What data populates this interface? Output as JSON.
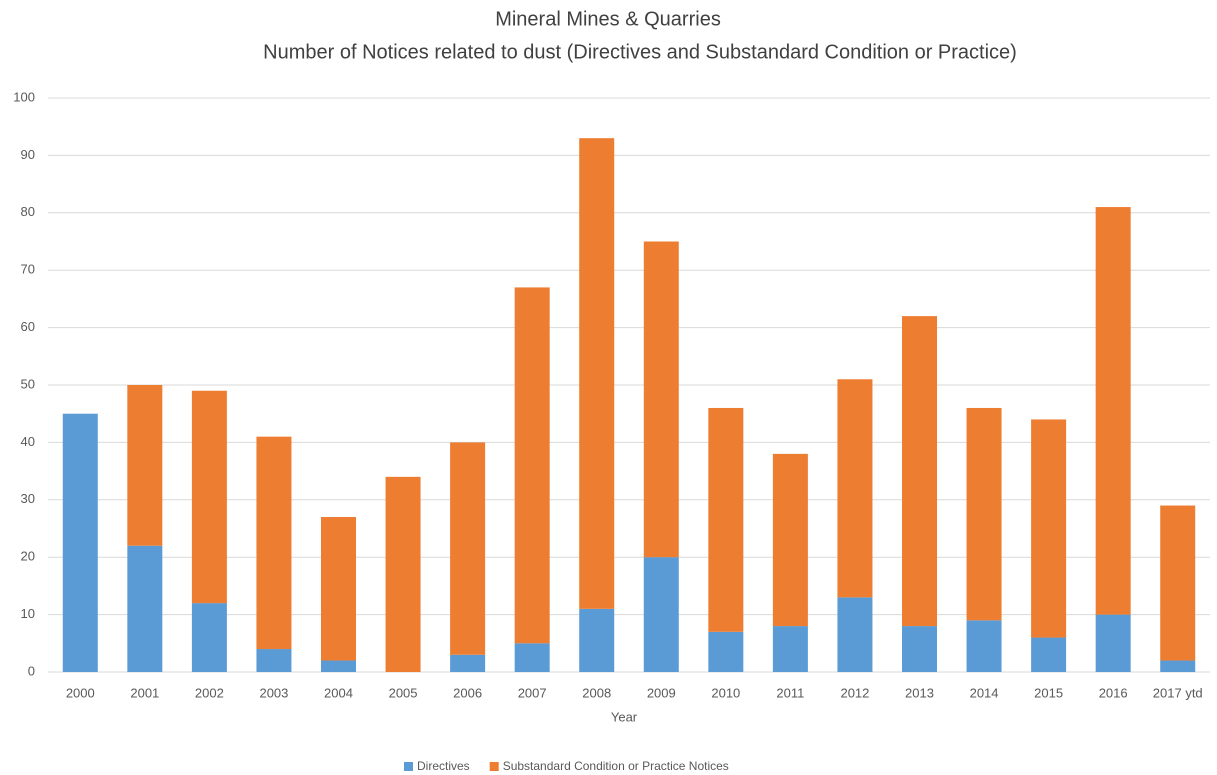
{
  "chart_data": {
    "type": "stacked_bar",
    "title": "Mineral Mines & Quarries",
    "subtitle": "Number of Notices related to dust (Directives and Substandard Condition or Practice)",
    "x_label": "Year",
    "categories": [
      "2000",
      "2001",
      "2002",
      "2003",
      "2004",
      "2005",
      "2006",
      "2007",
      "2008",
      "2009",
      "2010",
      "2011",
      "2012",
      "2013",
      "2014",
      "2015",
      "2016",
      "2017 ytd"
    ],
    "series": [
      {
        "name": "Directives",
        "color": "#5b9bd5",
        "values": [
          45,
          22,
          12,
          4,
          2,
          0,
          3,
          5,
          11,
          20,
          7,
          8,
          13,
          8,
          9,
          6,
          10,
          2
        ]
      },
      {
        "name": "Substandard Condition or Practice Notices",
        "color": "#ed7d31",
        "values": [
          0,
          28,
          37,
          37,
          25,
          34,
          37,
          62,
          82,
          55,
          39,
          30,
          38,
          54,
          37,
          38,
          71,
          27
        ]
      }
    ],
    "ylim": [
      0,
      100
    ],
    "yticks": [
      0,
      10,
      20,
      30,
      40,
      50,
      60,
      70,
      80,
      90,
      100
    ],
    "grid": true,
    "legend": "bottom"
  }
}
